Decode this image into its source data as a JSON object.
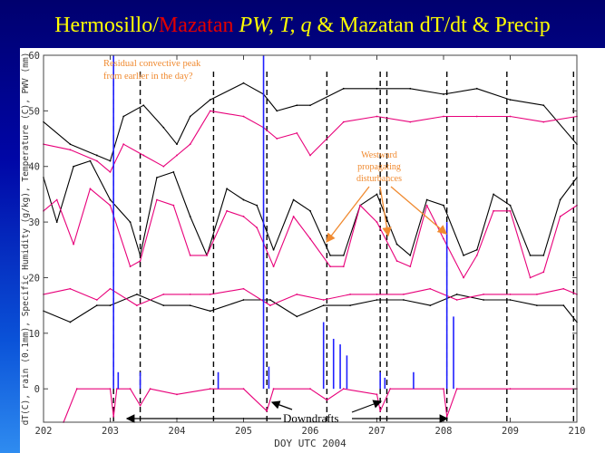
{
  "title": {
    "part1": "Hermosillo/",
    "part2": "Mazatan",
    "part3": " PW, T, q",
    "part4": " & Mazatan dT/dt & Precip"
  },
  "colors": {
    "hermosillo": "#000000",
    "mazatan": "#e8007a",
    "precip": "#2020ff",
    "annotation": "#f08a30",
    "title": "#ffff00",
    "title_accent": "#e00000"
  },
  "chart_data": {
    "type": "line",
    "xlabel": "DOY UTC 2004",
    "ylabel": "dT(C), rain (0.1mm), Specific Humidity (g/kg), Temperature (C), PWV (mm)",
    "xlim": [
      202,
      210
    ],
    "ylim": [
      -6,
      60
    ],
    "x_ticks": [
      202,
      203,
      204,
      205,
      206,
      207,
      208,
      209,
      210
    ],
    "y_ticks": [
      0,
      10,
      20,
      30,
      40,
      50,
      60
    ],
    "grid": false,
    "dashed_verticals": [
      203.05,
      203.45,
      204.55,
      205.35,
      206.25,
      207.05,
      207.15,
      208.05,
      208.95,
      209.95
    ],
    "series": [
      {
        "name": "PWV Hermosillo",
        "color": "#000000",
        "x": [
          202.0,
          202.4,
          202.8,
          203.0,
          203.2,
          203.5,
          203.8,
          204.0,
          204.2,
          204.5,
          205.0,
          205.3,
          205.5,
          205.8,
          206.0,
          206.5,
          207.0,
          207.5,
          208.0,
          208.5,
          209.0,
          209.5,
          210.0
        ],
        "y": [
          48,
          44,
          42,
          41,
          49,
          51,
          47,
          44,
          49,
          52,
          55,
          53,
          50,
          51,
          51,
          54,
          54,
          54,
          53,
          54,
          52,
          51,
          44
        ]
      },
      {
        "name": "PWV Mazatan",
        "color": "#e8007a",
        "x": [
          202.0,
          202.4,
          202.8,
          203.0,
          203.2,
          203.5,
          203.8,
          204.0,
          204.2,
          204.5,
          205.0,
          205.3,
          205.5,
          205.8,
          206.0,
          206.5,
          207.0,
          207.5,
          208.0,
          208.5,
          209.0,
          209.5,
          210.0
        ],
        "y": [
          44,
          43,
          41,
          39,
          44,
          42,
          40,
          42,
          44,
          50,
          49,
          47,
          45,
          46,
          42,
          48,
          49,
          48,
          49,
          49,
          49,
          48,
          49
        ]
      },
      {
        "name": "Temperature Hermosillo",
        "color": "#000000",
        "x": [
          202.0,
          202.2,
          202.45,
          202.7,
          203.0,
          203.3,
          203.45,
          203.7,
          203.95,
          204.2,
          204.45,
          204.75,
          205.0,
          205.2,
          205.45,
          205.75,
          206.0,
          206.3,
          206.5,
          206.75,
          207.0,
          207.3,
          207.5,
          207.75,
          208.0,
          208.3,
          208.5,
          208.75,
          209.0,
          209.3,
          209.5,
          209.75,
          210.0
        ],
        "y": [
          38,
          30,
          40,
          41,
          34,
          30,
          24,
          38,
          39,
          31,
          24,
          36,
          34,
          33,
          25,
          34,
          32,
          24,
          24,
          33,
          35,
          26,
          24,
          34,
          33,
          24,
          25,
          35,
          33,
          24,
          24,
          34,
          38
        ]
      },
      {
        "name": "Temperature Mazatan",
        "color": "#e8007a",
        "x": [
          202.0,
          202.2,
          202.45,
          202.7,
          203.0,
          203.3,
          203.45,
          203.7,
          203.95,
          204.2,
          204.45,
          204.75,
          205.0,
          205.2,
          205.45,
          205.75,
          206.0,
          206.3,
          206.5,
          206.75,
          207.0,
          207.3,
          207.5,
          207.75,
          208.0,
          208.3,
          208.5,
          208.75,
          209.0,
          209.3,
          209.5,
          209.75,
          210.0
        ],
        "y": [
          32,
          34,
          26,
          36,
          33,
          22,
          23,
          34,
          33,
          24,
          24,
          32,
          31,
          29,
          22,
          31,
          27,
          22,
          22,
          33,
          30,
          23,
          22,
          33,
          27,
          20,
          24,
          32,
          32,
          20,
          21,
          31,
          33
        ]
      },
      {
        "name": "Specific Humidity Hermosillo",
        "color": "#000000",
        "x": [
          202.0,
          202.4,
          202.8,
          203.0,
          203.4,
          203.8,
          204.2,
          204.5,
          205.0,
          205.4,
          205.8,
          206.2,
          206.6,
          207.0,
          207.4,
          207.8,
          208.2,
          208.6,
          209.0,
          209.4,
          209.8,
          210.0
        ],
        "y": [
          14,
          12,
          15,
          15,
          17,
          15,
          15,
          14,
          16,
          16,
          13,
          15,
          15,
          16,
          16,
          15,
          17,
          16,
          16,
          15,
          15,
          12
        ]
      },
      {
        "name": "Specific Humidity Mazatan",
        "color": "#e8007a",
        "x": [
          202.0,
          202.4,
          202.8,
          203.0,
          203.4,
          203.8,
          204.2,
          204.5,
          205.0,
          205.4,
          205.8,
          206.2,
          206.6,
          207.0,
          207.4,
          207.8,
          208.2,
          208.6,
          209.0,
          209.4,
          209.8,
          210.0
        ],
        "y": [
          17,
          18,
          16,
          18,
          15,
          17,
          17,
          17,
          18,
          15,
          17,
          16,
          17,
          17,
          17,
          18,
          16,
          17,
          17,
          17,
          18,
          17
        ]
      },
      {
        "name": "dT Mazatan",
        "color": "#e8007a",
        "x": [
          202.3,
          202.5,
          203.0,
          203.05,
          203.1,
          203.3,
          203.45,
          203.6,
          204.0,
          204.5,
          205.0,
          205.35,
          205.45,
          206.0,
          206.25,
          206.5,
          207.0,
          207.05,
          207.2,
          208.0,
          208.05,
          208.2,
          209.0,
          210.0
        ],
        "y": [
          -6,
          0,
          0,
          -5,
          0,
          0,
          -3,
          0,
          -1,
          0,
          0,
          -4,
          0,
          0,
          -2,
          0,
          -1,
          -4,
          0,
          0,
          -5,
          0,
          0,
          0
        ]
      },
      {
        "name": "Precip Mazatan",
        "color": "#2020ff",
        "x": [
          203.05,
          203.12,
          203.45,
          204.62,
          205.3,
          205.38,
          206.2,
          206.35,
          206.45,
          206.55,
          207.05,
          207.12,
          207.55,
          208.05,
          208.15
        ],
        "y": [
          60,
          3,
          3,
          3,
          60,
          4,
          12,
          9,
          8,
          6,
          3,
          2,
          3,
          30,
          13
        ]
      }
    ],
    "annotations": [
      {
        "text": "Residual convective peak",
        "color": "#f08a30"
      },
      {
        "text": "from earlier in the day?",
        "color": "#f08a30"
      },
      {
        "text": "Westward",
        "color": "#f08a30"
      },
      {
        "text": "propagating",
        "color": "#f08a30"
      },
      {
        "text": "disturbances",
        "color": "#f08a30"
      },
      {
        "text": "Downdrafts",
        "color": "#000000"
      }
    ]
  }
}
